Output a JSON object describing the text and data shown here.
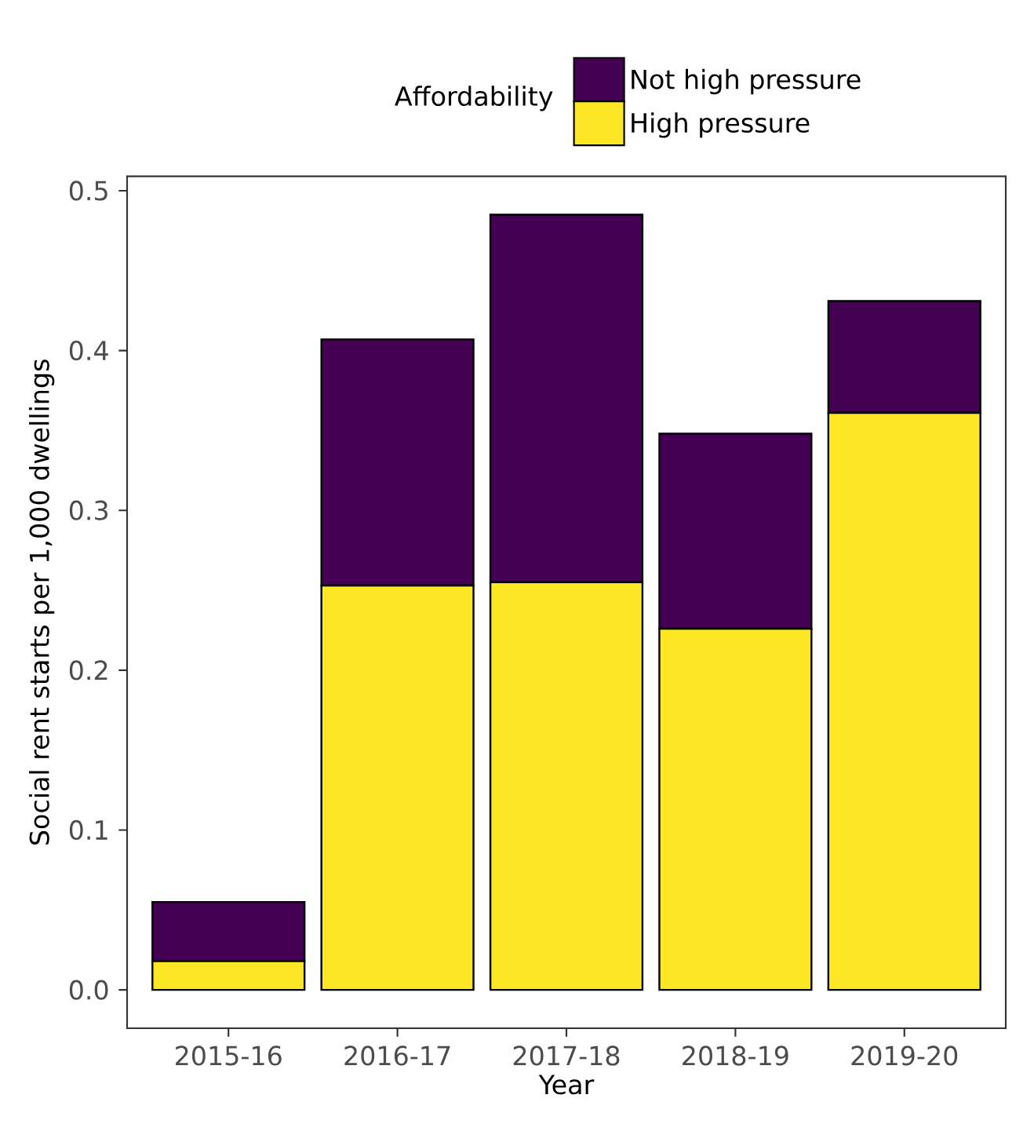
{
  "chart_data": {
    "type": "bar",
    "stacked": true,
    "xlabel": "Year",
    "ylabel": "Social rent starts per 1,000 dwellings",
    "legend_title": "Affordability",
    "legend": "top",
    "categories": [
      "2015-16",
      "2016-17",
      "2017-18",
      "2018-19",
      "2019-20"
    ],
    "series": [
      {
        "name": "High pressure",
        "color": "#fde725",
        "values": [
          0.018,
          0.253,
          0.255,
          0.226,
          0.361
        ]
      },
      {
        "name": "Not high pressure",
        "color": "#440154",
        "values": [
          0.037,
          0.154,
          0.23,
          0.122,
          0.07
        ]
      }
    ],
    "ylim": [
      -0.024,
      0.509
    ],
    "yticks": [
      {
        "value": 0,
        "label": "0.0"
      },
      {
        "value": 0.1,
        "label": "0.1"
      },
      {
        "value": 0.2,
        "label": "0.2"
      },
      {
        "value": 0.3,
        "label": "0.3"
      },
      {
        "value": 0.4,
        "label": "0.4"
      },
      {
        "value": 0.5,
        "label": "0.5"
      }
    ]
  }
}
